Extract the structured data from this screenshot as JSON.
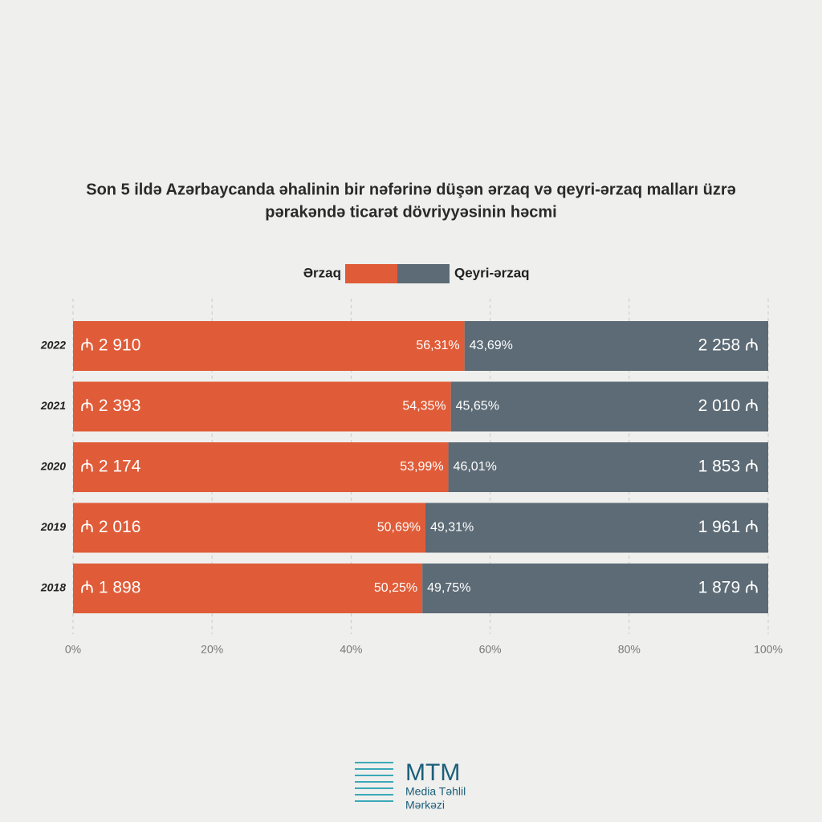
{
  "chart_data": {
    "type": "stacked-bar-100",
    "title": "Son 5 ildə Azərbaycanda əhalinin bir nəfərinə düşən ərzaq və qeyri-ərzaq malları üzrə",
    "subtitle": "pərakəndə ticarət dövriyyəsinin həcmi",
    "categories": [
      "2022",
      "2021",
      "2020",
      "2019",
      "2018"
    ],
    "series": [
      {
        "name": "Ərzaq",
        "color": "#e05c38",
        "values": [
          56.31,
          54.35,
          53.99,
          50.69,
          50.25
        ],
        "value_labels": [
          "56,31%",
          "54,35%",
          "53,99%",
          "50,69%",
          "50,25%"
        ],
        "amount_labels": [
          "₼ 2 910",
          "₼ 2 393",
          "₼ 2 174",
          "₼ 2 016",
          "₼ 1 898"
        ]
      },
      {
        "name": "Qeyri-ərzaq",
        "color": "#5c6b75",
        "values": [
          43.69,
          45.65,
          46.01,
          49.31,
          49.75
        ],
        "value_labels": [
          "43,69%",
          "45,65%",
          "46,01%",
          "49,31%",
          "49,75%"
        ],
        "amount_labels": [
          "2 258 ₼",
          "2 010 ₼",
          "1 853 ₼",
          "1 961 ₼",
          "1 879 ₼"
        ]
      }
    ],
    "xlim": [
      0,
      100
    ],
    "xticks": [
      {
        "value": 0,
        "label": "0%"
      },
      {
        "value": 20,
        "label": "20%"
      },
      {
        "value": 40,
        "label": "40%"
      },
      {
        "value": 60,
        "label": "60%"
      },
      {
        "value": 80,
        "label": "80%"
      },
      {
        "value": 100,
        "label": "100%"
      }
    ],
    "grid": true
  },
  "logo": {
    "name": "MTM",
    "lines": [
      "Media Təhlil",
      "Mərkəzi"
    ]
  }
}
